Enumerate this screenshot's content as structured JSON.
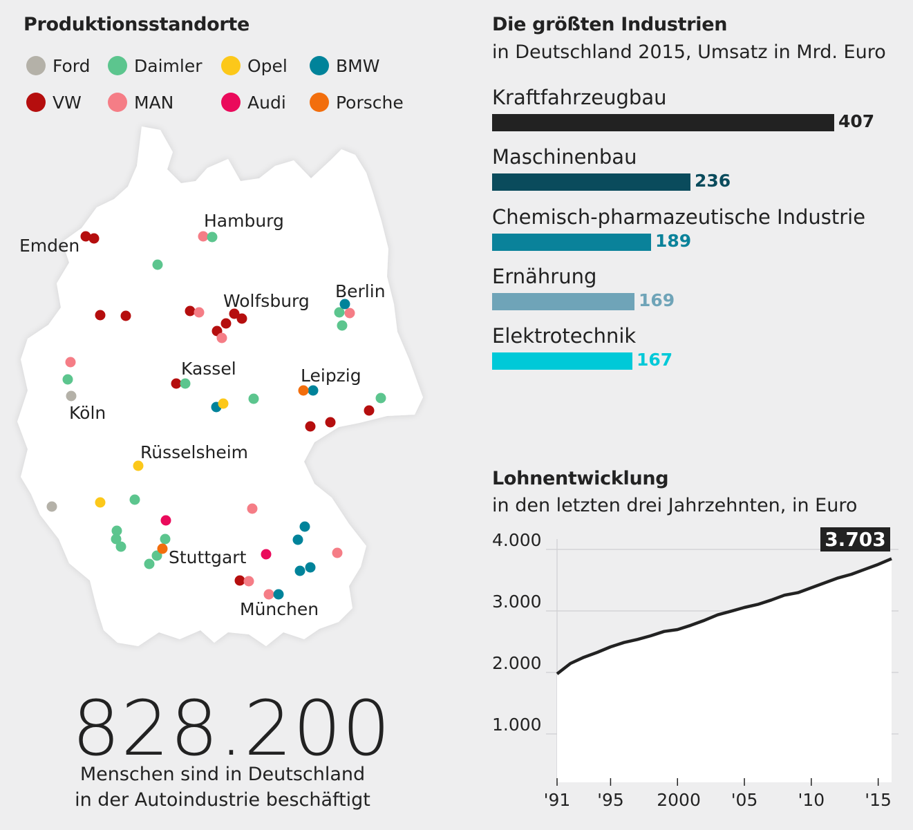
{
  "map": {
    "title": "Produktionsstandorte",
    "legend": [
      {
        "name": "Ford",
        "color": "#b4b1a8"
      },
      {
        "name": "Daimler",
        "color": "#5cc58e"
      },
      {
        "name": "Opel",
        "color": "#fcc81a"
      },
      {
        "name": "BMW",
        "color": "#00839a"
      },
      {
        "name": "VW",
        "color": "#b50e0e"
      },
      {
        "name": "MAN",
        "color": "#f57d86"
      },
      {
        "name": "Audi",
        "color": "#ea0a5b"
      },
      {
        "name": "Porsche",
        "color": "#f26e0d"
      }
    ],
    "cities": [
      "Hamburg",
      "Emden",
      "Berlin",
      "Wolfsburg",
      "Kassel",
      "Leipzig",
      "Köln",
      "Rüsselsheim",
      "Stuttgart",
      "München"
    ]
  },
  "headline": {
    "number": "828.200",
    "caption_line1": "Menschen sind in Deutschland",
    "caption_line2": "in der Autoindustrie beschäftigt"
  },
  "industries": {
    "title": "Die größten Industrien",
    "subtitle": "in Deutschland 2015, Umsatz in Mrd. Euro"
  },
  "wages": {
    "title": "Lohnentwicklung",
    "subtitle": "in den letzten drei Jahrzehnten, in Euro",
    "callout": "3.703"
  },
  "chart_data": [
    {
      "type": "bar",
      "orientation": "horizontal",
      "title": "Die größten Industrien",
      "subtitle": "in Deutschland 2015, Umsatz in Mrd. Euro",
      "categories": [
        "Kraftfahrzeugbau",
        "Maschinenbau",
        "Chemisch-pharmazeutische Industrie",
        "Ernährung",
        "Elektrotechnik"
      ],
      "values": [
        407,
        236,
        189,
        169,
        167
      ],
      "value_labels": [
        "407",
        "236",
        "189",
        "169",
        "167"
      ],
      "colors": [
        "#222222",
        "#0a4b5c",
        "#0a829a",
        "#6fa4b8",
        "#00c9d8"
      ]
    },
    {
      "type": "line",
      "title": "Lohnentwicklung",
      "subtitle": "in den letzten drei Jahrzehnten, in Euro",
      "x": [
        1991,
        1992,
        1993,
        1994,
        1995,
        1996,
        1997,
        1998,
        1999,
        2000,
        2001,
        2002,
        2003,
        2004,
        2005,
        2006,
        2007,
        2008,
        2009,
        2010,
        2011,
        2012,
        2013,
        2014,
        2015,
        2016
      ],
      "y": [
        1830,
        2000,
        2100,
        2180,
        2270,
        2340,
        2390,
        2450,
        2520,
        2550,
        2620,
        2700,
        2790,
        2850,
        2910,
        2960,
        3030,
        3110,
        3150,
        3230,
        3310,
        3390,
        3450,
        3530,
        3610,
        3703
      ],
      "xlim": [
        1991,
        2016
      ],
      "ylim": [
        0,
        4000
      ],
      "yticks": [
        1000,
        2000,
        3000,
        4000
      ],
      "ytick_labels": [
        "1.000",
        "2.000",
        "3.000",
        "4.000"
      ],
      "xticks": [
        1991,
        1995,
        2000,
        2005,
        2010,
        2015
      ],
      "xtick_labels": [
        "'91",
        "'95",
        "2000",
        "'05",
        "'10",
        "'15"
      ],
      "annotation": "3.703",
      "grid": "horizontal"
    }
  ]
}
